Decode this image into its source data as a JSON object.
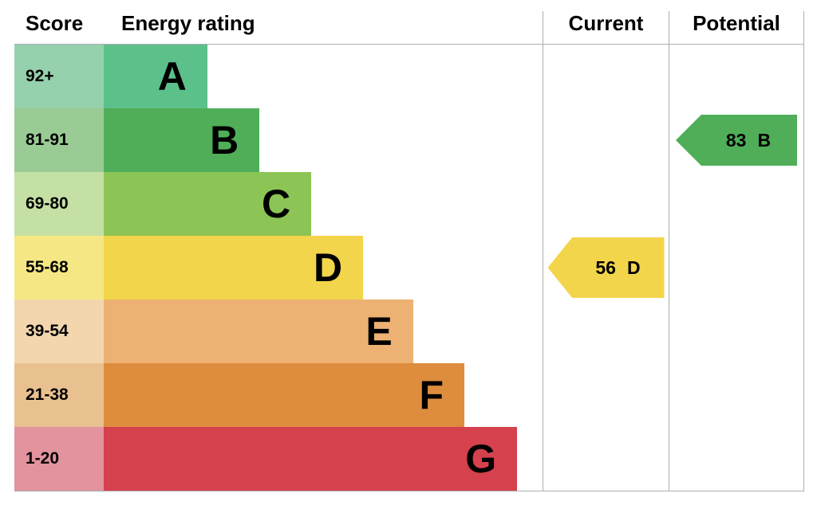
{
  "header": {
    "score": "Score",
    "rating": "Energy rating",
    "current": "Current",
    "potential": "Potential"
  },
  "chart_data": {
    "type": "bar",
    "subtype": "epc-energy-rating",
    "title": "Energy rating",
    "columns": [
      "Score",
      "Energy rating",
      "Current",
      "Potential"
    ],
    "bands": [
      {
        "letter": "A",
        "score": "92+",
        "color": "#5cc08a",
        "tint": "#95d1ad",
        "width": "23.6%"
      },
      {
        "letter": "B",
        "score": "81-91",
        "color": "#4fae57",
        "tint": "#9acb94",
        "width": "35.5%"
      },
      {
        "letter": "C",
        "score": "69-80",
        "color": "#8cc455",
        "tint": "#c5e0a4",
        "width": "47.3%"
      },
      {
        "letter": "D",
        "score": "55-68",
        "color": "#f3d54b",
        "tint": "#f5e884",
        "width": "59.1%"
      },
      {
        "letter": "E",
        "score": "39-54",
        "color": "#ecb173",
        "tint": "#f3d6ae",
        "width": "70.5%"
      },
      {
        "letter": "F",
        "score": "21-38",
        "color": "#dd8d3d",
        "tint": "#e9c190",
        "width": "82.2%"
      },
      {
        "letter": "G",
        "score": "1-20",
        "color": "#d6414e",
        "tint": "#e2939e",
        "width": "94.2%"
      }
    ],
    "current": {
      "value": "56",
      "band": "D",
      "color": "#f3d54b"
    },
    "potential": {
      "value": "83",
      "band": "B",
      "color": "#4fae57"
    }
  }
}
